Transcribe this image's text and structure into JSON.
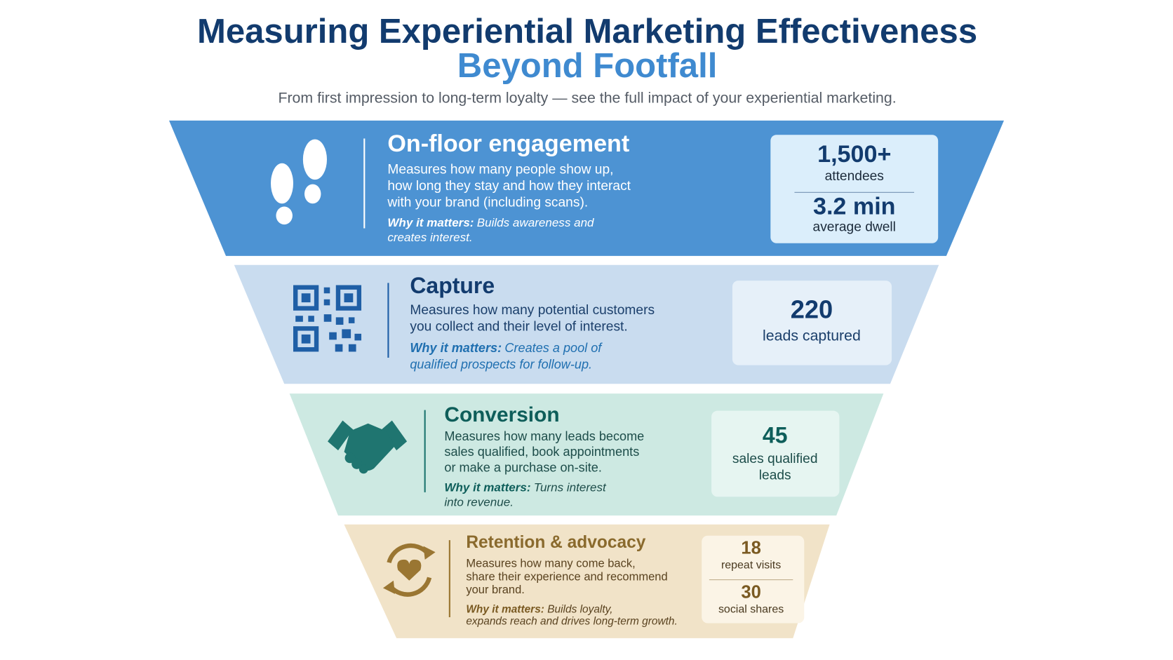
{
  "header": {
    "title_line1": "Measuring Experiential Marketing Effectiveness",
    "title_line2": "Beyond Footfall",
    "subtitle": "From first impression to long-term loyalty — see the full impact of your experiential marketing."
  },
  "stages": [
    {
      "title": "On-floor engagement",
      "description": [
        "Measures how many people show up,",
        "how long they stay and how they interact",
        "with your brand (including scans)."
      ],
      "why_label": "Why it matters:",
      "why": [
        "Builds awareness and",
        "creates interest."
      ],
      "metrics": [
        {
          "value": "1,500+",
          "label": [
            "attendees"
          ]
        },
        {
          "value": "3.2 min",
          "label": [
            "average dwell"
          ]
        }
      ]
    },
    {
      "title": "Capture",
      "description": [
        "Measures how many potential customers",
        "you collect and their level of interest."
      ],
      "why_label": "Why it matters:",
      "why": [
        "Creates a pool of",
        "qualified prospects for follow-up."
      ],
      "metrics": [
        {
          "value": "220",
          "label": [
            "leads captured"
          ]
        }
      ]
    },
    {
      "title": "Conversion",
      "description": [
        "Measures how many leads become",
        "sales qualified, book appointments",
        "or make a purchase on-site."
      ],
      "why_label": "Why it matters:",
      "why": [
        "Turns interest",
        "into revenue."
      ],
      "metrics": [
        {
          "value": "45",
          "label": [
            "sales qualified",
            "leads"
          ]
        }
      ]
    },
    {
      "title": "Retention & advocacy",
      "description": [
        "Measures how many come back,",
        "share their experience and recommend",
        "your brand."
      ],
      "why_label": "Why it matters:",
      "why": [
        "Builds loyalty,",
        "expands reach and drives long-term growth."
      ],
      "metrics": [
        {
          "value": "18",
          "label": [
            "repeat visits"
          ]
        },
        {
          "value": "30",
          "label": [
            "social shares"
          ]
        }
      ]
    }
  ]
}
